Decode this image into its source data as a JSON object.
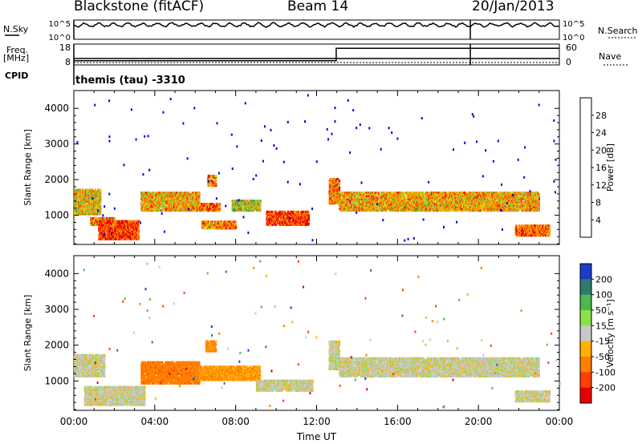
{
  "header": {
    "station": "Blackstone (fitACF)",
    "beam": "Beam 14",
    "date": "20/Jan/2013"
  },
  "side_labels": {
    "nsky": "N.Sky",
    "nsearch": "N.Search",
    "freq": "Freq.",
    "freq_unit": "[MHz]",
    "nave": "Nave",
    "cpid": "CPID",
    "cpid_value": "themis (tau) -3310"
  },
  "noise_panel": {
    "left_ticks": [
      "10^5",
      "10^0"
    ],
    "right_ticks": [
      "10^5",
      "10^0"
    ]
  },
  "freq_panel": {
    "left_ticks": [
      "18",
      "8"
    ],
    "right_ticks": [
      "60",
      "0"
    ],
    "nave_steps": [
      {
        "t": 0.0,
        "v": 12
      },
      {
        "t": 12.97,
        "v": 48
      },
      {
        "t": 24.0,
        "v": 48
      }
    ]
  },
  "x_axis": {
    "label": "Time UT",
    "ticks": [
      "00:00",
      "04:00",
      "08:00",
      "12:00",
      "16:00",
      "20:00",
      "00:00"
    ],
    "range": [
      0,
      24
    ]
  },
  "power_panel": {
    "ylabel": "Slant Range [km]",
    "yticks": [
      "1000",
      "2000",
      "3000",
      "4000"
    ],
    "colorbar_label": "Power [dB]",
    "colorbar_ticks": [
      "4",
      "8",
      "12",
      "16",
      "20",
      "24",
      "28"
    ],
    "colors": [
      "#0000e0",
      "#1e4fb4",
      "#2f7f7f",
      "#4ca84c",
      "#8cd23c",
      "#f0c800",
      "#ff9000",
      "#ff5000",
      "#e80000"
    ]
  },
  "velocity_panel": {
    "ylabel": "Velocity [m s⁻¹]",
    "range_label": "Slant Range [km]",
    "yticks": [
      "1000",
      "2000",
      "3000",
      "4000"
    ],
    "colorbar_ticks": [
      "200",
      "100",
      "50",
      "15",
      "-15",
      "-50",
      "-100",
      "-200"
    ],
    "colors": [
      "#1a3cc8",
      "#2e7a6e",
      "#4db84d",
      "#8be04a",
      "#c8c8c8",
      "#ffb000",
      "#ff8000",
      "#ff4000",
      "#e80000"
    ]
  },
  "chart_data": {
    "type": "heatmap",
    "title": "Blackstone (fitACF)",
    "xlabel": "Time UT",
    "ylabel": "Slant Range [km]",
    "xlim": [
      0,
      24
    ],
    "ylim": [
      180,
      4500
    ],
    "x_unit": "hours UT",
    "series": [
      {
        "name": "Power [dB]",
        "echo_regions": [
          {
            "t": [
              0.0,
              1.3
            ],
            "r": [
              1000,
              1700
            ],
            "val": 20
          },
          {
            "t": [
              0.8,
              2.0
            ],
            "r": [
              700,
              900
            ],
            "val": 24
          },
          {
            "t": [
              1.2,
              3.2
            ],
            "r": [
              300,
              800
            ],
            "val": 28
          },
          {
            "t": [
              3.3,
              6.2
            ],
            "r": [
              1100,
              1600
            ],
            "val": 22
          },
          {
            "t": [
              6.2,
              7.2
            ],
            "r": [
              1100,
              1300
            ],
            "val": 26
          },
          {
            "t": [
              6.6,
              7.0
            ],
            "r": [
              1800,
              2100
            ],
            "val": 24
          },
          {
            "t": [
              6.3,
              8.0
            ],
            "r": [
              600,
              800
            ],
            "val": 24
          },
          {
            "t": [
              7.8,
              9.2
            ],
            "r": [
              1100,
              1400
            ],
            "val": 18
          },
          {
            "t": [
              9.5,
              11.6
            ],
            "r": [
              700,
              1100
            ],
            "val": 28
          },
          {
            "t": [
              12.6,
              13.1
            ],
            "r": [
              1300,
              2000
            ],
            "val": 24
          },
          {
            "t": [
              13.1,
              23.0
            ],
            "r": [
              1100,
              1600
            ],
            "val": 22
          },
          {
            "t": [
              21.8,
              23.5
            ],
            "r": [
              400,
              700
            ],
            "val": 26
          }
        ]
      },
      {
        "name": "Velocity [m/s]",
        "echo_regions": [
          {
            "t": [
              0.0,
              1.5
            ],
            "r": [
              1100,
              1700
            ],
            "val": 0
          },
          {
            "t": [
              0.5,
              3.5
            ],
            "r": [
              300,
              800
            ],
            "val": 0
          },
          {
            "t": [
              3.3,
              6.2
            ],
            "r": [
              900,
              1500
            ],
            "val": -80
          },
          {
            "t": [
              6.5,
              7.0
            ],
            "r": [
              1800,
              2100
            ],
            "val": -60
          },
          {
            "t": [
              6.2,
              9.2
            ],
            "r": [
              1000,
              1400
            ],
            "val": -50
          },
          {
            "t": [
              9.0,
              11.8
            ],
            "r": [
              700,
              1000
            ],
            "val": 0
          },
          {
            "t": [
              12.6,
              13.1
            ],
            "r": [
              1300,
              2100
            ],
            "val": 0
          },
          {
            "t": [
              13.1,
              23.0
            ],
            "r": [
              1100,
              1600
            ],
            "val": 0
          },
          {
            "t": [
              21.8,
              23.5
            ],
            "r": [
              400,
              700
            ],
            "val": 0
          }
        ]
      }
    ]
  }
}
